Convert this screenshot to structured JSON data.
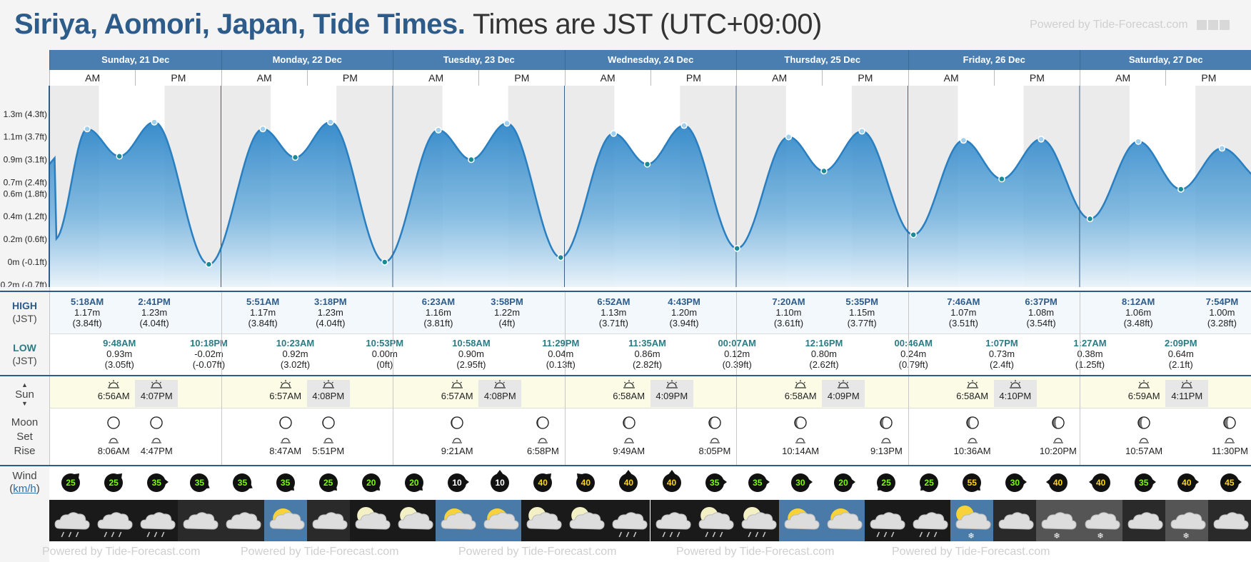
{
  "header": {
    "title_bold": "Siriya, Aomori, Japan, Tide Times.",
    "title_rest": "Times are JST (UTC+09:00)",
    "powered_by": "Powered by Tide-Forecast.com",
    "footer_text": "Powered by Tide-Forecast.com"
  },
  "labels": {
    "high": "HIGH",
    "high_tz": "(JST)",
    "low": "LOW",
    "low_tz": "(JST)",
    "sun": "Sun",
    "moon": "Moon",
    "set": "Set",
    "rise": "Rise",
    "wind": "Wind",
    "wind_unit": "km/h"
  },
  "days": [
    "Sunday, 21 Dec",
    "Monday, 22 Dec",
    "Tuesday, 23 Dec",
    "Wednesday, 24 Dec",
    "Thursday, 25 Dec",
    "Friday, 26 Dec",
    "Saturday, 27 Dec"
  ],
  "ampm": [
    "AM",
    "PM"
  ],
  "chart_data": {
    "type": "area",
    "y_tick_labels": [
      "1.3m (4.3ft)",
      "1.1m (3.7ft)",
      "0.9m (3.1ft)",
      "0.7m (2.4ft)",
      "0.6m (1.8ft)",
      "0.4m (1.2ft)",
      "0.2m (0.6ft)",
      "0m (-0.1ft)",
      "-0.2m (-0.7ft)"
    ],
    "y_tick_values": [
      1.3,
      1.1,
      0.9,
      0.7,
      0.6,
      0.4,
      0.2,
      0.0,
      -0.2
    ],
    "ylim": [
      -0.22,
      1.55
    ],
    "x_unit": "hours since Sunday 21 Dec 00:00 JST",
    "xlim": [
      0,
      168
    ],
    "extrema": [
      {
        "day": 0,
        "type": "high",
        "time": "5:18AM",
        "height": "1.17m",
        "feet": "(3.84ft)",
        "h": 5.3,
        "v": 1.17
      },
      {
        "day": 0,
        "type": "low",
        "time": "9:48AM",
        "height": "0.93m",
        "feet": "(3.05ft)",
        "h": 9.8,
        "v": 0.93
      },
      {
        "day": 0,
        "type": "high",
        "time": "2:41PM",
        "height": "1.23m",
        "feet": "(4.04ft)",
        "h": 14.68,
        "v": 1.23
      },
      {
        "day": 0,
        "type": "low",
        "time": "10:18PM",
        "height": "-0.02m",
        "feet": "(-0.07ft)",
        "h": 22.3,
        "v": -0.02
      },
      {
        "day": 1,
        "type": "high",
        "time": "5:51AM",
        "height": "1.17m",
        "feet": "(3.84ft)",
        "h": 29.85,
        "v": 1.17
      },
      {
        "day": 1,
        "type": "low",
        "time": "10:23AM",
        "height": "0.92m",
        "feet": "(3.02ft)",
        "h": 34.38,
        "v": 0.92
      },
      {
        "day": 1,
        "type": "high",
        "time": "3:18PM",
        "height": "1.23m",
        "feet": "(4.04ft)",
        "h": 39.3,
        "v": 1.23
      },
      {
        "day": 1,
        "type": "low",
        "time": "10:53PM",
        "height": "0.00m",
        "feet": "(0ft)",
        "h": 46.88,
        "v": 0.0
      },
      {
        "day": 2,
        "type": "high",
        "time": "6:23AM",
        "height": "1.16m",
        "feet": "(3.81ft)",
        "h": 54.38,
        "v": 1.16
      },
      {
        "day": 2,
        "type": "low",
        "time": "10:58AM",
        "height": "0.90m",
        "feet": "(2.95ft)",
        "h": 58.97,
        "v": 0.9
      },
      {
        "day": 2,
        "type": "high",
        "time": "3:58PM",
        "height": "1.22m",
        "feet": "(4ft)",
        "h": 63.97,
        "v": 1.22
      },
      {
        "day": 2,
        "type": "low",
        "time": "11:29PM",
        "height": "0.04m",
        "feet": "(0.13ft)",
        "h": 71.48,
        "v": 0.04
      },
      {
        "day": 3,
        "type": "high",
        "time": "6:52AM",
        "height": "1.13m",
        "feet": "(3.71ft)",
        "h": 78.87,
        "v": 1.13
      },
      {
        "day": 3,
        "type": "low",
        "time": "11:35AM",
        "height": "0.86m",
        "feet": "(2.82ft)",
        "h": 83.58,
        "v": 0.86
      },
      {
        "day": 3,
        "type": "high",
        "time": "4:43PM",
        "height": "1.20m",
        "feet": "(3.94ft)",
        "h": 88.72,
        "v": 1.2
      },
      {
        "day": 4,
        "type": "low",
        "time": "00:07AM",
        "height": "0.12m",
        "feet": "(0.39ft)",
        "h": 96.12,
        "v": 0.12
      },
      {
        "day": 4,
        "type": "high",
        "time": "7:20AM",
        "height": "1.10m",
        "feet": "(3.61ft)",
        "h": 103.33,
        "v": 1.1
      },
      {
        "day": 4,
        "type": "low",
        "time": "12:16PM",
        "height": "0.80m",
        "feet": "(2.62ft)",
        "h": 108.27,
        "v": 0.8
      },
      {
        "day": 4,
        "type": "high",
        "time": "5:35PM",
        "height": "1.15m",
        "feet": "(3.77ft)",
        "h": 113.58,
        "v": 1.15
      },
      {
        "day": 5,
        "type": "low",
        "time": "00:46AM",
        "height": "0.24m",
        "feet": "(0.79ft)",
        "h": 120.77,
        "v": 0.24
      },
      {
        "day": 5,
        "type": "high",
        "time": "7:46AM",
        "height": "1.07m",
        "feet": "(3.51ft)",
        "h": 127.77,
        "v": 1.07
      },
      {
        "day": 5,
        "type": "low",
        "time": "1:07PM",
        "height": "0.73m",
        "feet": "(2.4ft)",
        "h": 133.12,
        "v": 0.73
      },
      {
        "day": 5,
        "type": "high",
        "time": "6:37PM",
        "height": "1.08m",
        "feet": "(3.54ft)",
        "h": 138.62,
        "v": 1.08
      },
      {
        "day": 6,
        "type": "low",
        "time": "1:27AM",
        "height": "0.38m",
        "feet": "(1.25ft)",
        "h": 145.45,
        "v": 0.38
      },
      {
        "day": 6,
        "type": "high",
        "time": "8:12AM",
        "height": "1.06m",
        "feet": "(3.48ft)",
        "h": 152.2,
        "v": 1.06
      },
      {
        "day": 6,
        "type": "low",
        "time": "2:09PM",
        "height": "0.64m",
        "feet": "(2.1ft)",
        "h": 158.15,
        "v": 0.64
      },
      {
        "day": 6,
        "type": "high",
        "time": "7:54PM",
        "height": "1.00m",
        "feet": "(3.28ft)",
        "h": 163.9,
        "v": 1.0
      }
    ],
    "start_value": 0.35,
    "grid": false
  },
  "sun": [
    {
      "rise": "6:56AM",
      "set": "4:07PM",
      "rh": 6.93,
      "sh": 16.12
    },
    {
      "rise": "6:57AM",
      "set": "4:08PM",
      "rh": 6.95,
      "sh": 16.13
    },
    {
      "rise": "6:57AM",
      "set": "4:08PM",
      "rh": 6.95,
      "sh": 16.13
    },
    {
      "rise": "6:58AM",
      "set": "4:09PM",
      "rh": 6.97,
      "sh": 16.15
    },
    {
      "rise": "6:58AM",
      "set": "4:09PM",
      "rh": 6.97,
      "sh": 16.15
    },
    {
      "rise": "6:58AM",
      "set": "4:10PM",
      "rh": 6.97,
      "sh": 16.17
    },
    {
      "rise": "6:59AM",
      "set": "4:11PM",
      "rh": 6.98,
      "sh": 16.18
    }
  ],
  "moon": [
    {
      "day": 0,
      "slot": 1,
      "time": "8:06AM",
      "kind": "rise",
      "phase": 0.02
    },
    {
      "day": 0,
      "slot": 2,
      "time": "4:47PM",
      "kind": "set",
      "phase": 0.02
    },
    {
      "day": 1,
      "slot": 1,
      "time": "8:47AM",
      "kind": "rise",
      "phase": 0.06
    },
    {
      "day": 1,
      "slot": 2,
      "time": "5:51PM",
      "kind": "set",
      "phase": 0.06
    },
    {
      "day": 2,
      "slot": 1,
      "time": "9:21AM",
      "kind": "rise",
      "phase": 0.1
    },
    {
      "day": 2,
      "slot": 3,
      "time": "6:58PM",
      "kind": "set",
      "phase": 0.12
    },
    {
      "day": 3,
      "slot": 1,
      "time": "9:49AM",
      "kind": "rise",
      "phase": 0.15
    },
    {
      "day": 3,
      "slot": 3,
      "time": "8:05PM",
      "kind": "set",
      "phase": 0.18
    },
    {
      "day": 4,
      "slot": 1,
      "time": "10:14AM",
      "kind": "rise",
      "phase": 0.2
    },
    {
      "day": 4,
      "slot": 3,
      "time": "9:13PM",
      "kind": "set",
      "phase": 0.23
    },
    {
      "day": 5,
      "slot": 1,
      "time": "10:36AM",
      "kind": "rise",
      "phase": 0.25
    },
    {
      "day": 5,
      "slot": 3,
      "time": "10:20PM",
      "kind": "set",
      "phase": 0.28
    },
    {
      "day": 6,
      "slot": 1,
      "time": "10:57AM",
      "kind": "rise",
      "phase": 0.3
    },
    {
      "day": 6,
      "slot": 3,
      "time": "11:30PM",
      "kind": "set",
      "phase": 0.33
    }
  ],
  "wind": [
    {
      "speed": "25",
      "dir": 45,
      "color": "#111",
      "text": "#7cfc00"
    },
    {
      "speed": "25",
      "dir": 45,
      "color": "#111",
      "text": "#7cfc00"
    },
    {
      "speed": "35",
      "dir": 90,
      "color": "#111",
      "text": "#7cfc00"
    },
    {
      "speed": "35",
      "dir": 120,
      "color": "#111",
      "text": "#7cfc00"
    },
    {
      "speed": "35",
      "dir": 120,
      "color": "#111",
      "text": "#7cfc00"
    },
    {
      "speed": "35",
      "dir": 135,
      "color": "#111",
      "text": "#7cfc00"
    },
    {
      "speed": "25",
      "dir": 135,
      "color": "#111",
      "text": "#7cfc00"
    },
    {
      "speed": "20",
      "dir": 135,
      "color": "#111",
      "text": "#7cfc00"
    },
    {
      "speed": "20",
      "dir": 135,
      "color": "#111",
      "text": "#7cfc00"
    },
    {
      "speed": "10",
      "dir": 90,
      "color": "#111",
      "text": "#ffffff"
    },
    {
      "speed": "10",
      "dir": 0,
      "color": "#111",
      "text": "#ffffff"
    },
    {
      "speed": "40",
      "dir": 45,
      "color": "#111",
      "text": "#ffd700"
    },
    {
      "speed": "40",
      "dir": 315,
      "color": "#111",
      "text": "#ffd700"
    },
    {
      "speed": "40",
      "dir": 0,
      "color": "#111",
      "text": "#ffd700"
    },
    {
      "speed": "40",
      "dir": 0,
      "color": "#111",
      "text": "#ffd700"
    },
    {
      "speed": "35",
      "dir": 90,
      "color": "#111",
      "text": "#7cfc00"
    },
    {
      "speed": "35",
      "dir": 90,
      "color": "#111",
      "text": "#7cfc00"
    },
    {
      "speed": "30",
      "dir": 90,
      "color": "#111",
      "text": "#7cfc00"
    },
    {
      "speed": "20",
      "dir": 90,
      "color": "#111",
      "text": "#7cfc00"
    },
    {
      "speed": "25",
      "dir": 225,
      "color": "#111",
      "text": "#7cfc00"
    },
    {
      "speed": "25",
      "dir": 225,
      "color": "#111",
      "text": "#7cfc00"
    },
    {
      "speed": "55",
      "dir": 135,
      "color": "#111",
      "text": "#ffd700"
    },
    {
      "speed": "30",
      "dir": 90,
      "color": "#111",
      "text": "#7cfc00"
    },
    {
      "speed": "40",
      "dir": 270,
      "color": "#111",
      "text": "#ffd700"
    },
    {
      "speed": "40",
      "dir": 270,
      "color": "#111",
      "text": "#ffd700"
    },
    {
      "speed": "35",
      "dir": 90,
      "color": "#111",
      "text": "#7cfc00"
    },
    {
      "speed": "40",
      "dir": 90,
      "color": "#111",
      "text": "#ffd700"
    },
    {
      "speed": "45",
      "dir": 90,
      "color": "#111",
      "text": "#ffd700"
    }
  ],
  "weather": [
    "rain-cloud",
    "rain-cloud",
    "rain-cloud",
    "cloud",
    "cloud",
    "sun-cloud",
    "cloud",
    "moon-cloud",
    "moon-cloud",
    "sun-cloud",
    "sun-cloud",
    "moon-cloud",
    "moon-cloud",
    "rain-cloud",
    "rain-cloud",
    "moon-rain",
    "moon-rain",
    "sun-cloud",
    "sun-cloud",
    "rain-cloud",
    "rain-cloud",
    "sun-snow",
    "cloud",
    "snow-cloud",
    "snow-cloud",
    "cloud",
    "snow-cloud",
    "cloud"
  ],
  "colors": {
    "accent": "#2e5c8a",
    "header_blue": "#4a7eb0",
    "tide_fill_top": "#2e86c8",
    "tide_fill_bottom": "#eaf4fb",
    "night_shade": "#ebebeb",
    "sun_row": "#fcfbe6"
  }
}
